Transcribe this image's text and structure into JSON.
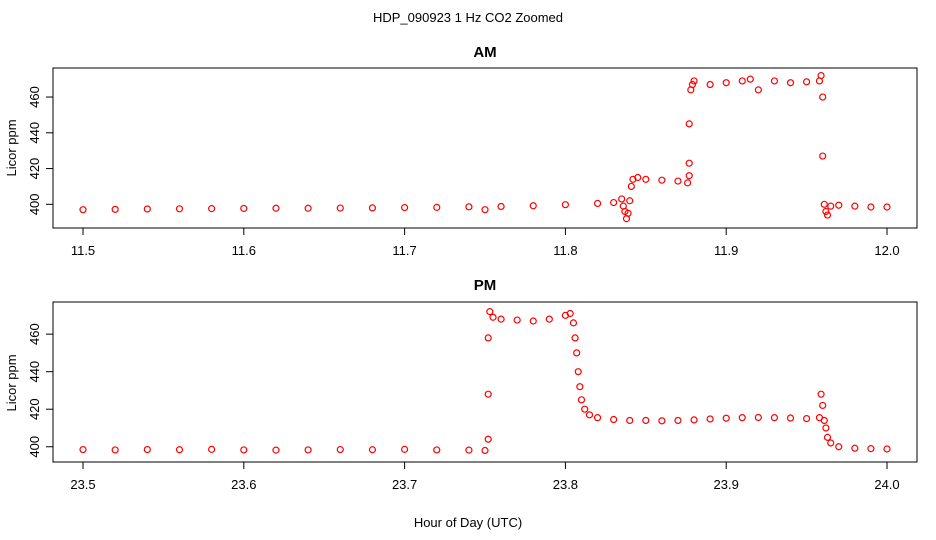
{
  "figure": {
    "title": "HDP_090923  1 Hz CO2 Zoomed",
    "xlabel": "Hour of Day (UTC)"
  },
  "colors": {
    "points": "#ff0000",
    "axis": "#000000"
  },
  "chart_data": [
    {
      "type": "scatter",
      "title": "AM",
      "ylabel": "Licor ppm",
      "xlim": [
        11.5,
        12.0
      ],
      "ylim": [
        389,
        474
      ],
      "xticks": [
        {
          "v": 11.5,
          "label": "11.5"
        },
        {
          "v": 11.6,
          "label": "11.6"
        },
        {
          "v": 11.7,
          "label": "11.7"
        },
        {
          "v": 11.8,
          "label": "11.8"
        },
        {
          "v": 11.9,
          "label": "11.9"
        },
        {
          "v": 12.0,
          "label": "12.0"
        }
      ],
      "yticks": [
        {
          "v": 400,
          "label": "400"
        },
        {
          "v": 420,
          "label": "420"
        },
        {
          "v": 440,
          "label": "440"
        },
        {
          "v": 460,
          "label": "460"
        }
      ],
      "series": [
        {
          "marker": "open-circle",
          "points": [
            [
              11.5,
              397
            ],
            [
              11.52,
              397.2
            ],
            [
              11.54,
              397.4
            ],
            [
              11.56,
              397.5
            ],
            [
              11.58,
              397.6
            ],
            [
              11.6,
              397.7
            ],
            [
              11.62,
              397.8
            ],
            [
              11.64,
              397.8
            ],
            [
              11.66,
              397.9
            ],
            [
              11.68,
              398
            ],
            [
              11.7,
              398.2
            ],
            [
              11.72,
              398.3
            ],
            [
              11.74,
              398.6
            ],
            [
              11.75,
              397
            ],
            [
              11.76,
              398.8
            ],
            [
              11.78,
              399.2
            ],
            [
              11.8,
              399.8
            ],
            [
              11.82,
              400.5
            ],
            [
              11.83,
              401
            ],
            [
              11.835,
              403
            ],
            [
              11.836,
              399
            ],
            [
              11.837,
              396
            ],
            [
              11.838,
              392
            ],
            [
              11.839,
              395
            ],
            [
              11.84,
              402
            ],
            [
              11.841,
              410
            ],
            [
              11.842,
              414
            ],
            [
              11.845,
              415
            ],
            [
              11.85,
              414
            ],
            [
              11.86,
              413.5
            ],
            [
              11.87,
              413
            ],
            [
              11.876,
              412
            ],
            [
              11.877,
              416
            ],
            [
              11.877,
              423
            ],
            [
              11.877,
              445
            ],
            [
              11.878,
              464
            ],
            [
              11.879,
              467
            ],
            [
              11.88,
              469
            ],
            [
              11.89,
              467
            ],
            [
              11.9,
              468
            ],
            [
              11.91,
              469
            ],
            [
              11.915,
              470
            ],
            [
              11.92,
              464
            ],
            [
              11.93,
              469
            ],
            [
              11.94,
              468
            ],
            [
              11.95,
              468.5
            ],
            [
              11.958,
              469
            ],
            [
              11.959,
              472
            ],
            [
              11.96,
              460
            ],
            [
              11.96,
              427
            ],
            [
              11.961,
              400
            ],
            [
              11.962,
              396
            ],
            [
              11.963,
              394
            ],
            [
              11.965,
              399
            ],
            [
              11.97,
              399.5
            ],
            [
              11.98,
              399
            ],
            [
              11.99,
              398.5
            ],
            [
              12.0,
              398.5
            ]
          ]
        }
      ]
    },
    {
      "type": "scatter",
      "title": "PM",
      "ylabel": "Licor ppm",
      "xlim": [
        23.5,
        24.0
      ],
      "ylim": [
        394,
        475
      ],
      "xticks": [
        {
          "v": 23.5,
          "label": "23.5"
        },
        {
          "v": 23.6,
          "label": "23.6"
        },
        {
          "v": 23.7,
          "label": "23.7"
        },
        {
          "v": 23.8,
          "label": "23.8"
        },
        {
          "v": 23.9,
          "label": "23.9"
        },
        {
          "v": 24.0,
          "label": "24.0"
        }
      ],
      "yticks": [
        {
          "v": 400,
          "label": "400"
        },
        {
          "v": 420,
          "label": "420"
        },
        {
          "v": 440,
          "label": "440"
        },
        {
          "v": 460,
          "label": "460"
        }
      ],
      "series": [
        {
          "marker": "open-circle",
          "points": [
            [
              23.5,
              398.5
            ],
            [
              23.52,
              398.3
            ],
            [
              23.54,
              398.5
            ],
            [
              23.56,
              398.4
            ],
            [
              23.58,
              398.6
            ],
            [
              23.6,
              398.3
            ],
            [
              23.62,
              398.2
            ],
            [
              23.64,
              398.3
            ],
            [
              23.66,
              398.5
            ],
            [
              23.68,
              398.4
            ],
            [
              23.7,
              398.6
            ],
            [
              23.72,
              398.3
            ],
            [
              23.74,
              398.2
            ],
            [
              23.75,
              398
            ],
            [
              23.752,
              404
            ],
            [
              23.752,
              428
            ],
            [
              23.752,
              458
            ],
            [
              23.753,
              472
            ],
            [
              23.755,
              469
            ],
            [
              23.76,
              468
            ],
            [
              23.77,
              467.5
            ],
            [
              23.78,
              467
            ],
            [
              23.79,
              468
            ],
            [
              23.8,
              470
            ],
            [
              23.803,
              471
            ],
            [
              23.805,
              466
            ],
            [
              23.806,
              458
            ],
            [
              23.807,
              450
            ],
            [
              23.808,
              440
            ],
            [
              23.809,
              432
            ],
            [
              23.81,
              425
            ],
            [
              23.812,
              420
            ],
            [
              23.815,
              417
            ],
            [
              23.82,
              415.5
            ],
            [
              23.83,
              414.5
            ],
            [
              23.84,
              414
            ],
            [
              23.85,
              414
            ],
            [
              23.86,
              413.8
            ],
            [
              23.87,
              414
            ],
            [
              23.88,
              414.3
            ],
            [
              23.89,
              414.8
            ],
            [
              23.9,
              415.2
            ],
            [
              23.91,
              415.5
            ],
            [
              23.92,
              415.6
            ],
            [
              23.93,
              415.5
            ],
            [
              23.94,
              415.3
            ],
            [
              23.95,
              415
            ],
            [
              23.958,
              415.5
            ],
            [
              23.959,
              428
            ],
            [
              23.96,
              422
            ],
            [
              23.961,
              414
            ],
            [
              23.962,
              410
            ],
            [
              23.963,
              405
            ],
            [
              23.965,
              402
            ],
            [
              23.97,
              400
            ],
            [
              23.98,
              399.2
            ],
            [
              23.99,
              399
            ],
            [
              24.0,
              398.8
            ]
          ]
        }
      ]
    }
  ]
}
